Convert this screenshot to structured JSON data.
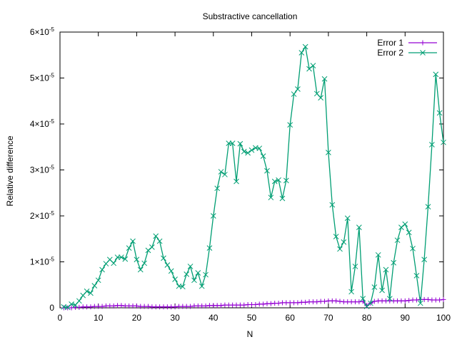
{
  "chart_data": {
    "type": "line",
    "title": "Substractive cancellation",
    "xlabel": "N",
    "ylabel": "Relative difference",
    "xlim": [
      0,
      100
    ],
    "ylim": [
      0,
      6e-05
    ],
    "x_ticks": [
      "0",
      "10",
      "20",
      "30",
      "40",
      "50",
      "60",
      "70",
      "80",
      "90",
      "100"
    ],
    "y_ticks": [
      {
        "value": 0,
        "mant": "0",
        "exp": ""
      },
      {
        "value": 1e-05,
        "mant": "1×10",
        "exp": "-5"
      },
      {
        "value": 2e-05,
        "mant": "2×10",
        "exp": "-5"
      },
      {
        "value": 3e-05,
        "mant": "3×10",
        "exp": "-5"
      },
      {
        "value": 4e-05,
        "mant": "4×10",
        "exp": "-5"
      },
      {
        "value": 5e-05,
        "mant": "5×10",
        "exp": "-5"
      },
      {
        "value": 6e-05,
        "mant": "6×10",
        "exp": "-5"
      }
    ],
    "legend_position": "top-right",
    "grid": false,
    "series": [
      {
        "name": "Error 1",
        "color": "#9400d3",
        "marker": "plus",
        "x": [
          1,
          2,
          3,
          4,
          5,
          6,
          7,
          8,
          9,
          10,
          11,
          12,
          13,
          14,
          15,
          16,
          17,
          18,
          19,
          20,
          21,
          22,
          23,
          24,
          25,
          26,
          27,
          28,
          29,
          30,
          31,
          32,
          33,
          34,
          35,
          36,
          37,
          38,
          39,
          40,
          41,
          42,
          43,
          44,
          45,
          46,
          47,
          48,
          49,
          50,
          51,
          52,
          53,
          54,
          55,
          56,
          57,
          58,
          59,
          60,
          61,
          62,
          63,
          64,
          65,
          66,
          67,
          68,
          69,
          70,
          71,
          72,
          73,
          74,
          75,
          76,
          77,
          78,
          79,
          80,
          81,
          82,
          83,
          84,
          85,
          86,
          87,
          88,
          89,
          90,
          91,
          92,
          93,
          94,
          95,
          96,
          97,
          98,
          99,
          100
        ],
        "values": [
          0,
          0,
          0,
          1e-07,
          1e-07,
          2e-07,
          2e-07,
          2e-07,
          3e-07,
          3e-07,
          3e-07,
          4e-07,
          4e-07,
          4e-07,
          5e-07,
          5e-07,
          4e-07,
          4e-07,
          4e-07,
          4e-07,
          3e-07,
          3e-07,
          3e-07,
          2e-07,
          2e-07,
          2e-07,
          2e-07,
          2e-07,
          2e-07,
          2e-07,
          3e-07,
          3e-07,
          3e-07,
          3e-07,
          4e-07,
          4e-07,
          4e-07,
          4e-07,
          5e-07,
          5e-07,
          5e-07,
          5e-07,
          6e-07,
          6e-07,
          6e-07,
          6e-07,
          6e-07,
          6e-07,
          7e-07,
          7e-07,
          7e-07,
          8e-07,
          8e-07,
          9e-07,
          9e-07,
          1e-06,
          1e-06,
          1.1e-06,
          1.1e-06,
          1.1e-06,
          1.1e-06,
          1.1e-06,
          1.2e-06,
          1.2e-06,
          1.3e-06,
          1.3e-06,
          1.3e-06,
          1.4e-06,
          1.4e-06,
          1.5e-06,
          1.5e-06,
          1.5e-06,
          1.4e-06,
          1.3e-06,
          1.3e-06,
          1.3e-06,
          1.3e-06,
          1.3e-06,
          1.4e-06,
          5e-07,
          1e-06,
          1.4e-06,
          1.5e-06,
          1.5e-06,
          1.5e-06,
          1.5e-06,
          1.5e-06,
          1.5e-06,
          1.5e-06,
          1.5e-06,
          1.6e-06,
          1.7e-06,
          1.7e-06,
          1.8e-06,
          1.8e-06,
          1.8e-06,
          1.7e-06,
          1.7e-06,
          1.7e-06,
          1.8e-06
        ]
      },
      {
        "name": "Error 2",
        "color": "#009e73",
        "marker": "cross",
        "x": [
          1,
          2,
          3,
          4,
          5,
          6,
          7,
          8,
          9,
          10,
          11,
          12,
          13,
          14,
          15,
          16,
          17,
          18,
          19,
          20,
          21,
          22,
          23,
          24,
          25,
          26,
          27,
          28,
          29,
          30,
          31,
          32,
          33,
          34,
          35,
          36,
          37,
          38,
          39,
          40,
          41,
          42,
          43,
          44,
          45,
          46,
          47,
          48,
          49,
          50,
          51,
          52,
          53,
          54,
          55,
          56,
          57,
          58,
          59,
          60,
          61,
          62,
          63,
          64,
          65,
          66,
          67,
          68,
          69,
          70,
          71,
          72,
          73,
          74,
          75,
          76,
          77,
          78,
          79,
          80,
          81,
          82,
          83,
          84,
          85,
          86,
          87,
          88,
          89,
          90,
          91,
          92,
          93,
          94,
          95,
          96,
          97,
          98,
          99,
          100
        ],
        "values": [
          2e-07,
          1e-07,
          8e-07,
          6e-07,
          1.5e-06,
          2.7e-06,
          3.6e-06,
          3.2e-06,
          4.8e-06,
          6e-06,
          8.3e-06,
          9.6e-06,
          1.05e-05,
          9.7e-06,
          1.1e-05,
          1.1e-05,
          1.06e-05,
          1.3e-05,
          1.45e-05,
          1.05e-05,
          8.3e-06,
          9.7e-06,
          1.25e-05,
          1.32e-05,
          1.56e-05,
          1.45e-05,
          1.08e-05,
          9.3e-06,
          8e-06,
          6.2e-06,
          4.7e-06,
          4.6e-06,
          7.3e-06,
          9e-06,
          6e-06,
          7.6e-06,
          4.7e-06,
          7.2e-06,
          1.3e-05,
          2e-05,
          2.6e-05,
          2.96e-05,
          2.9e-05,
          3.58e-05,
          3.58e-05,
          2.75e-05,
          3.57e-05,
          3.4e-05,
          3.37e-05,
          3.43e-05,
          3.48e-05,
          3.47e-05,
          3.3e-05,
          2.98e-05,
          2.4e-05,
          2.75e-05,
          2.78e-05,
          2.38e-05,
          2.77e-05,
          3.98e-05,
          4.65e-05,
          4.76e-05,
          5.55e-05,
          5.68e-05,
          5.2e-05,
          5.27e-05,
          4.66e-05,
          4.57e-05,
          4.98e-05,
          3.38e-05,
          2.24e-05,
          1.55e-05,
          1.28e-05,
          1.43e-05,
          1.95e-05,
          3.5e-06,
          9e-06,
          1.75e-05,
          2e-06,
          3e-07,
          1e-06,
          4.5e-06,
          1.15e-05,
          3.8e-06,
          8.3e-06,
          2e-06,
          9.8e-06,
          1.47e-05,
          1.75e-05,
          1.82e-05,
          1.64e-05,
          1.29e-05,
          7e-06,
          1e-06,
          1.05e-05,
          2.2e-05,
          3.55e-05,
          5.08e-05,
          4.24e-05,
          3.6e-05
        ]
      }
    ]
  }
}
